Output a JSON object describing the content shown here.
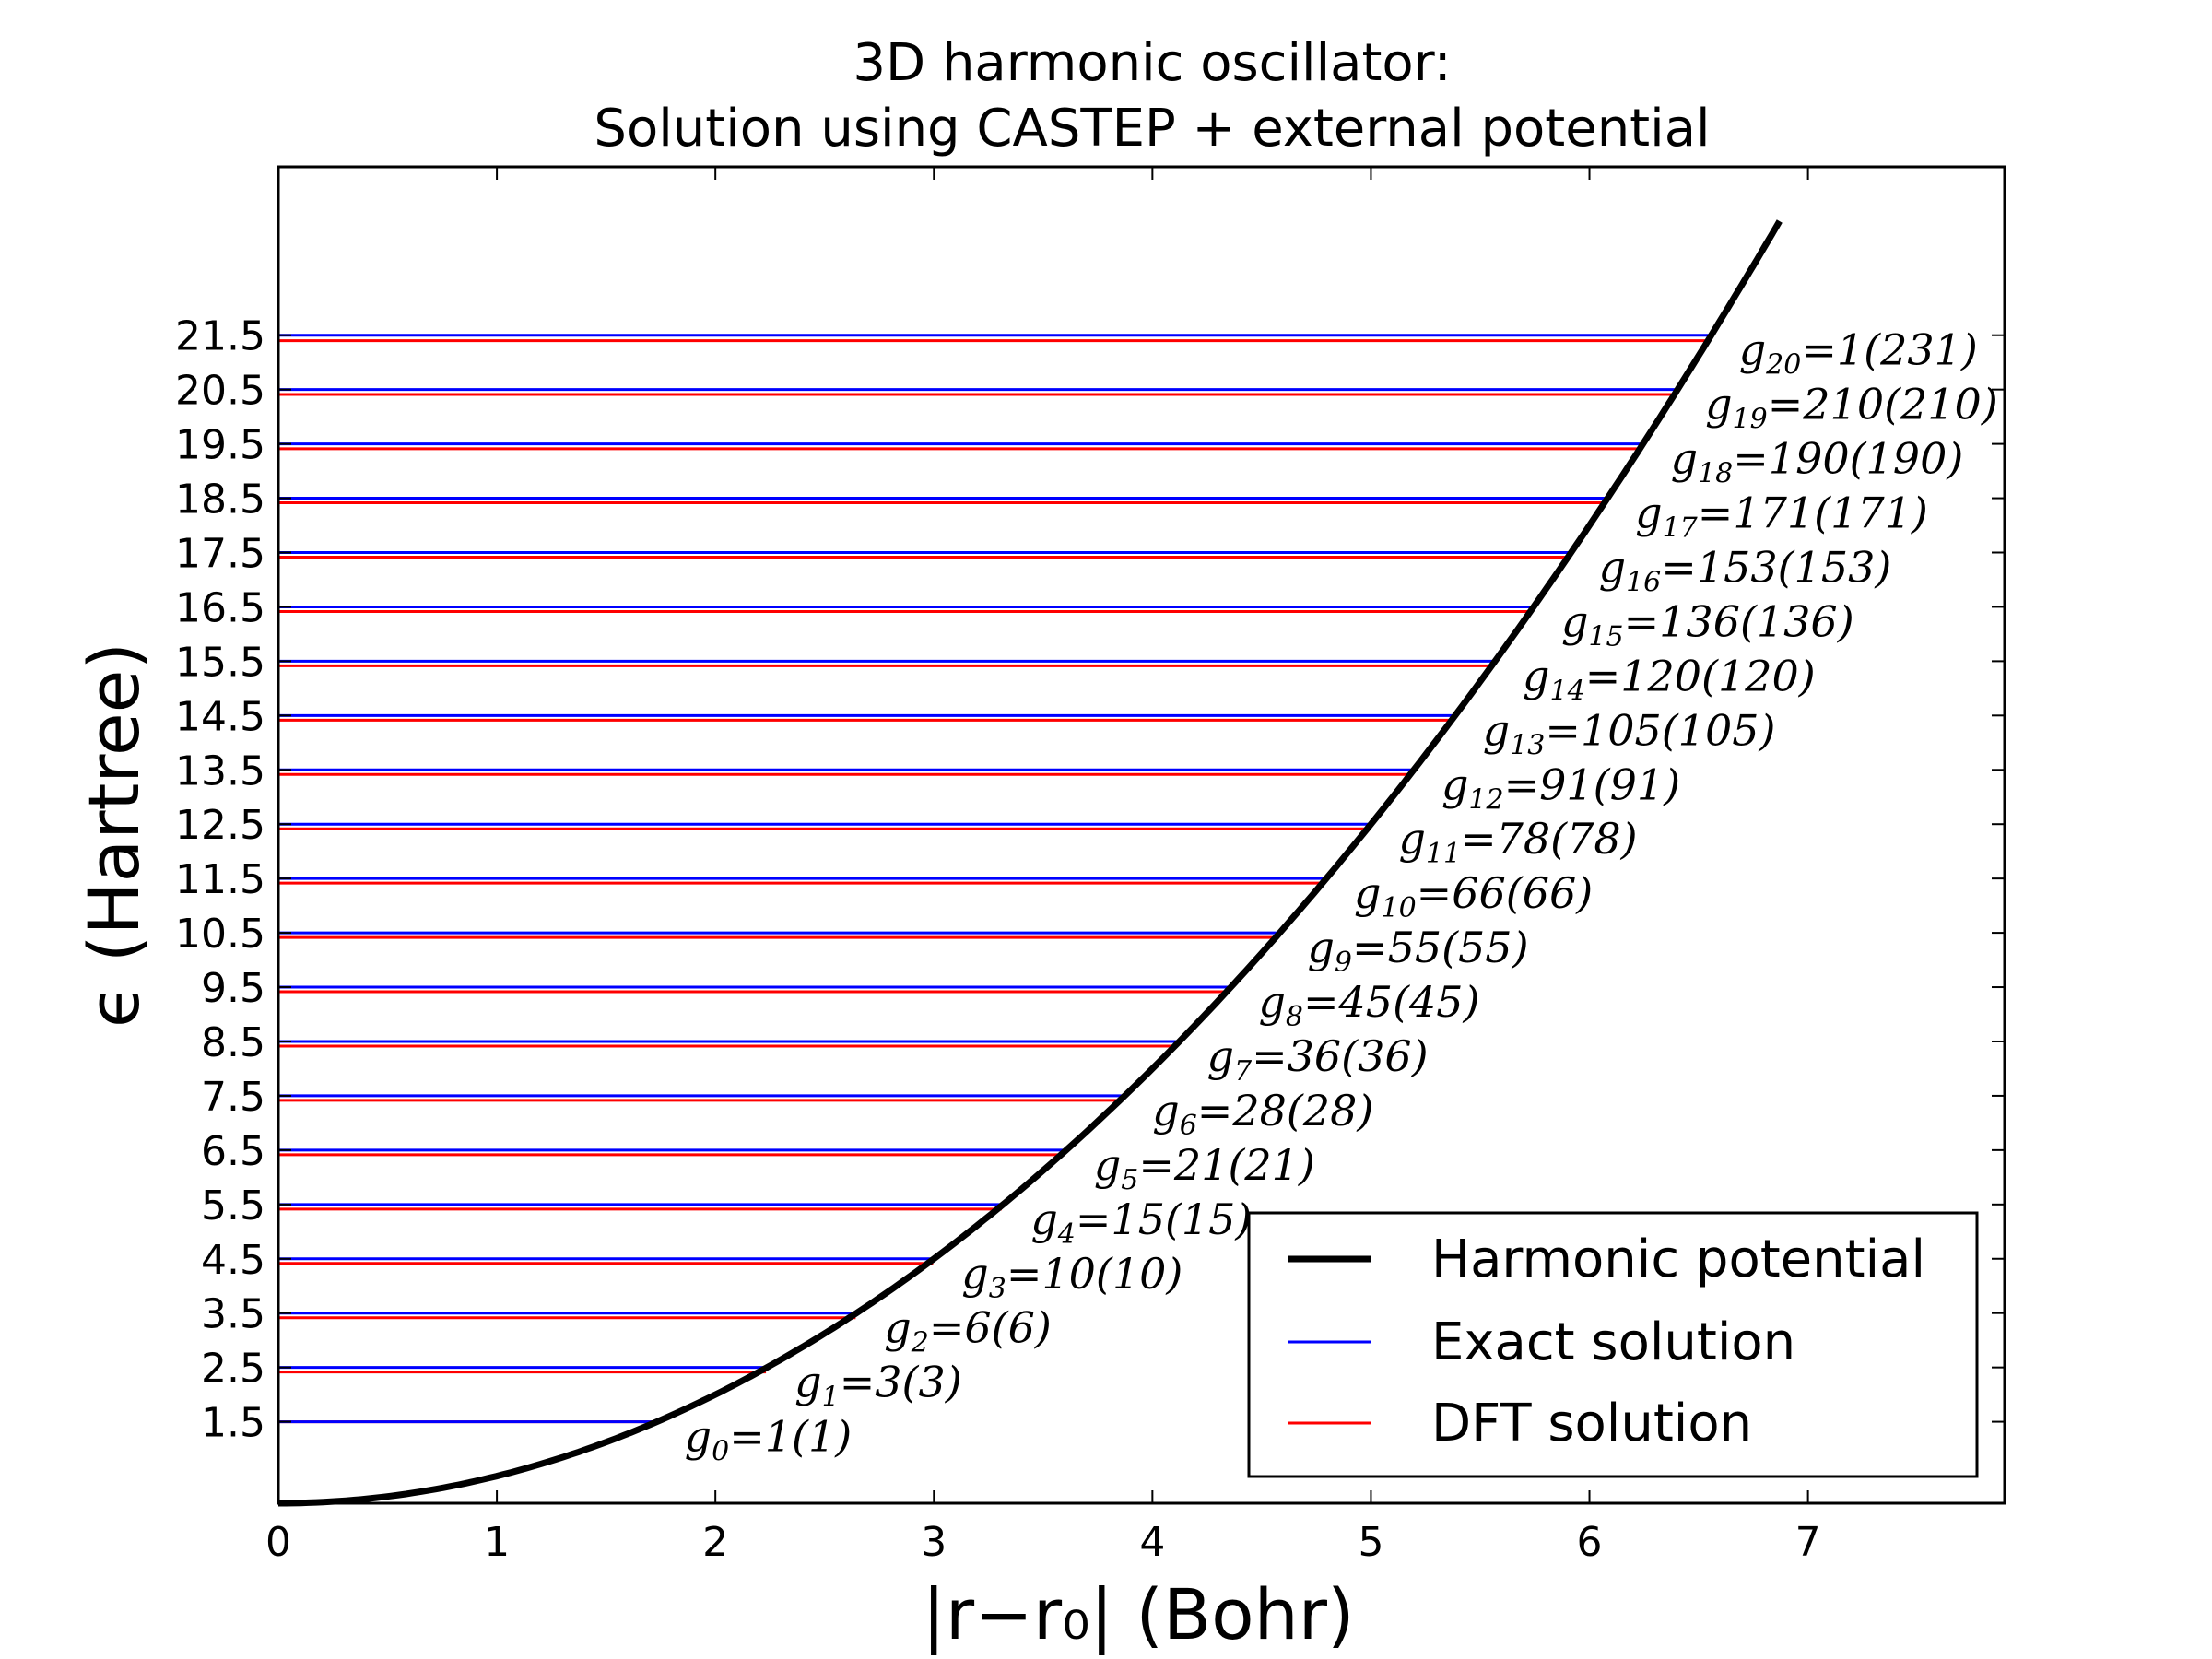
{
  "chart_data": {
    "type": "line",
    "title_line1": "3D harmonic oscillator:",
    "title_line2": "Solution using CASTEP + external potential",
    "xlabel": "|r−r₀| (Bohr)",
    "ylabel": "ϵ (Hartree)",
    "xlim": [
      0,
      7.9
    ],
    "ylim": [
      0,
      24.6
    ],
    "x_ticks": [
      "0",
      "1",
      "2",
      "3",
      "4",
      "5",
      "6",
      "7"
    ],
    "y_ticks": [
      "1.5",
      "2.5",
      "3.5",
      "4.5",
      "5.5",
      "6.5",
      "7.5",
      "8.5",
      "9.5",
      "10.5",
      "11.5",
      "12.5",
      "13.5",
      "14.5",
      "15.5",
      "16.5",
      "17.5",
      "18.5",
      "19.5",
      "20.5",
      "21.5"
    ],
    "grid": false,
    "legend_position": "lower-right",
    "series": [
      {
        "name": "Harmonic potential",
        "color": "#000000",
        "kind": "curve",
        "function": "0.5*x^2",
        "x_range": [
          0,
          6.87
        ]
      },
      {
        "name": "Exact solution",
        "color": "#0000ff",
        "kind": "levels",
        "values": [
          1.5,
          2.5,
          3.5,
          4.5,
          5.5,
          6.5,
          7.5,
          8.5,
          9.5,
          10.5,
          11.5,
          12.5,
          13.5,
          14.5,
          15.5,
          16.5,
          17.5,
          18.5,
          19.5,
          20.5,
          21.5
        ]
      },
      {
        "name": "DFT solution",
        "color": "#ff0000",
        "kind": "levels",
        "values": [
          1.5,
          2.49,
          3.49,
          4.49,
          5.48,
          6.48,
          7.47,
          8.47,
          9.46,
          10.46,
          11.45,
          12.45,
          13.44,
          14.44,
          15.43,
          16.43,
          17.42,
          18.42,
          19.41,
          20.41,
          21.4
        ]
      }
    ],
    "annotations": [
      {
        "sub": "0",
        "value": "1(1)"
      },
      {
        "sub": "1",
        "value": "3(3)"
      },
      {
        "sub": "2",
        "value": "6(6)"
      },
      {
        "sub": "3",
        "value": "10(10)"
      },
      {
        "sub": "4",
        "value": "15(15)"
      },
      {
        "sub": "5",
        "value": "21(21)"
      },
      {
        "sub": "6",
        "value": "28(28)"
      },
      {
        "sub": "7",
        "value": "36(36)"
      },
      {
        "sub": "8",
        "value": "45(45)"
      },
      {
        "sub": "9",
        "value": "55(55)"
      },
      {
        "sub": "10",
        "value": "66(66)"
      },
      {
        "sub": "11",
        "value": "78(78)"
      },
      {
        "sub": "12",
        "value": "91(91)"
      },
      {
        "sub": "13",
        "value": "105(105)"
      },
      {
        "sub": "14",
        "value": "120(120)"
      },
      {
        "sub": "15",
        "value": "136(136)"
      },
      {
        "sub": "16",
        "value": "153(153)"
      },
      {
        "sub": "17",
        "value": "171(171)"
      },
      {
        "sub": "18",
        "value": "190(190)"
      },
      {
        "sub": "19",
        "value": "210(210)"
      },
      {
        "sub": "20",
        "value": "1(231)"
      }
    ],
    "legend": [
      {
        "label": "Harmonic potential",
        "color": "#000000"
      },
      {
        "label": "Exact solution",
        "color": "#0000ff"
      },
      {
        "label": "DFT solution",
        "color": "#ff0000"
      }
    ]
  }
}
